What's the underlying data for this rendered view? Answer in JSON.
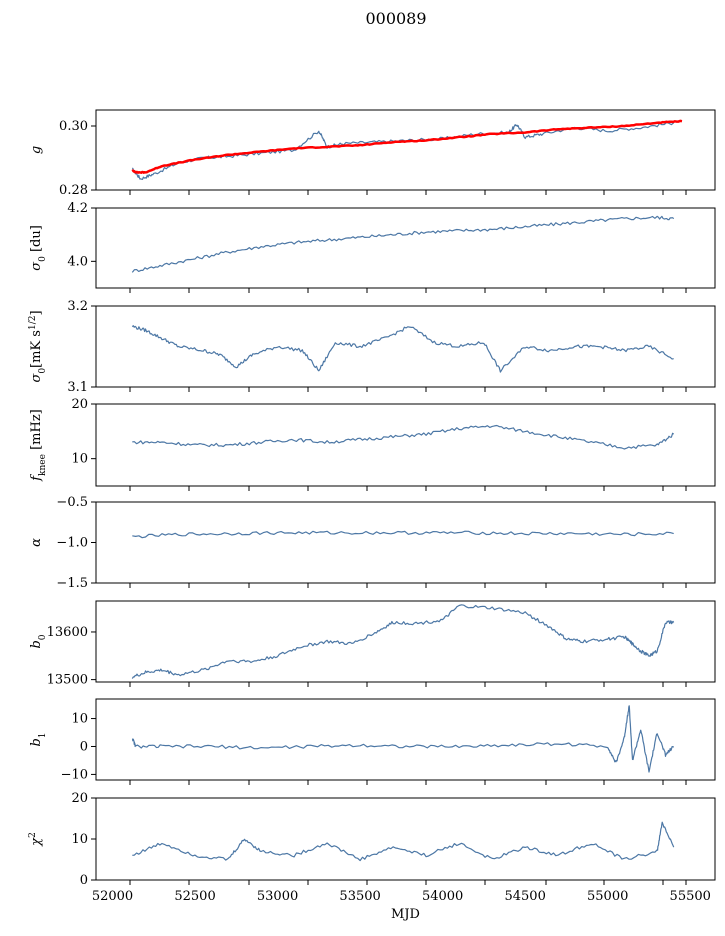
{
  "figure": {
    "title": "000089"
  },
  "colors": {
    "primary": "#4c77a5",
    "overlay": "#ff0000"
  },
  "chart_data": [
    {
      "type": "line",
      "ylabel": "g",
      "ylabel_sub": "",
      "xlim": [
        51900,
        55650
      ],
      "ylim": [
        0.28,
        0.305
      ],
      "yticks": [
        0.28,
        0.3
      ],
      "ytick_labels": [
        "0.28",
        "0.30"
      ],
      "series": [
        {
          "color": "#4c77a5",
          "x": [
            52120,
            52170,
            52250,
            52400,
            52550,
            52700,
            52900,
            53100,
            53250,
            53300,
            53400,
            53600,
            53800,
            54000,
            54200,
            54400,
            54450,
            54500,
            54600,
            54800,
            55000,
            55200,
            55400
          ],
          "y": [
            0.2865,
            0.2835,
            0.285,
            0.2885,
            0.29,
            0.2905,
            0.2915,
            0.2925,
            0.2985,
            0.2935,
            0.2945,
            0.295,
            0.2955,
            0.296,
            0.2975,
            0.298,
            0.3005,
            0.2965,
            0.2975,
            0.2995,
            0.2985,
            0.2995,
            0.301
          ]
        },
        {
          "color": "#ff0000",
          "x": [
            52120,
            52150,
            52200,
            52300,
            52500,
            52700,
            52900,
            53100,
            53300,
            53500,
            53700,
            53900,
            54100,
            54300,
            54500,
            54700,
            54900,
            55100,
            55300,
            55450
          ],
          "y": [
            0.286,
            0.2855,
            0.2855,
            0.2875,
            0.2895,
            0.291,
            0.292,
            0.293,
            0.2935,
            0.294,
            0.295,
            0.2955,
            0.2965,
            0.2975,
            0.298,
            0.299,
            0.2995,
            0.3,
            0.301,
            0.3015
          ]
        }
      ]
    },
    {
      "type": "line",
      "ylabel": "σ",
      "ylabel_sub": "0",
      "ylabel_unit": " [du]",
      "xlim": [
        51900,
        55650
      ],
      "ylim": [
        3.9,
        4.2
      ],
      "yticks": [
        4.0,
        4.2
      ],
      "ytick_labels": [
        "4.0",
        "4.2"
      ],
      "series": [
        {
          "color": "#4c77a5",
          "x": [
            52120,
            52300,
            52500,
            52700,
            52900,
            53100,
            53300,
            53500,
            53700,
            53900,
            54100,
            54300,
            54500,
            54700,
            54900,
            55100,
            55300,
            55400
          ],
          "y": [
            3.963,
            3.985,
            4.01,
            4.035,
            4.055,
            4.07,
            4.08,
            4.09,
            4.1,
            4.11,
            4.115,
            4.12,
            4.13,
            4.14,
            4.15,
            4.16,
            4.165,
            4.16
          ]
        }
      ]
    },
    {
      "type": "line",
      "ylabel": "σ",
      "ylabel_sub": "0",
      "ylabel_unit": "[mK s",
      "xlim": [
        51900,
        55650
      ],
      "ylim": [
        3.1,
        3.2
      ],
      "yticks": [
        3.1,
        3.2
      ],
      "ytick_labels": [
        "3.1",
        "3.2"
      ],
      "series": [
        {
          "color": "#4c77a5",
          "x": [
            52120,
            52200,
            52300,
            52400,
            52550,
            52650,
            52750,
            52850,
            53000,
            53150,
            53250,
            53350,
            53500,
            53650,
            53800,
            53950,
            54100,
            54250,
            54350,
            54500,
            54650,
            54800,
            54950,
            55100,
            55250,
            55400
          ],
          "y": [
            3.175,
            3.17,
            3.16,
            3.15,
            3.145,
            3.14,
            3.125,
            3.14,
            3.15,
            3.145,
            3.12,
            3.155,
            3.15,
            3.16,
            3.175,
            3.155,
            3.15,
            3.155,
            3.12,
            3.15,
            3.145,
            3.15,
            3.15,
            3.145,
            3.15,
            3.135
          ]
        }
      ]
    },
    {
      "type": "line",
      "ylabel": "f",
      "ylabel_sub": "knee",
      "ylabel_unit": " [mHz]",
      "xlim": [
        51900,
        55650
      ],
      "ylim": [
        5,
        20
      ],
      "yticks": [
        10,
        20
      ],
      "ytick_labels": [
        "10",
        "20"
      ],
      "series": [
        {
          "color": "#4c77a5",
          "x": [
            52120,
            52300,
            52500,
            52700,
            52900,
            53100,
            53300,
            53500,
            53700,
            53900,
            54100,
            54300,
            54500,
            54700,
            54900,
            55100,
            55300,
            55400
          ],
          "y": [
            13,
            13,
            12.5,
            12.5,
            13,
            13.5,
            13,
            13.5,
            14,
            14.5,
            15.5,
            16,
            15,
            14,
            13,
            12,
            12.5,
            14.5
          ]
        }
      ]
    },
    {
      "type": "line",
      "ylabel": "α",
      "ylabel_sub": "",
      "ylabel_unit": "",
      "xlim": [
        51900,
        55650
      ],
      "ylim": [
        -1.5,
        -0.5
      ],
      "yticks": [
        -1.5,
        -1.0,
        -0.5
      ],
      "ytick_labels": [
        "−1.5",
        "−1.0",
        "−0.5"
      ],
      "series": [
        {
          "color": "#4c77a5",
          "x": [
            52120,
            52400,
            52700,
            53000,
            53300,
            53600,
            53900,
            54200,
            54500,
            54800,
            55100,
            55400
          ],
          "y": [
            -0.93,
            -0.9,
            -0.89,
            -0.88,
            -0.88,
            -0.88,
            -0.88,
            -0.88,
            -0.89,
            -0.89,
            -0.9,
            -0.89
          ]
        }
      ]
    },
    {
      "type": "line",
      "ylabel": "b",
      "ylabel_sub": "0",
      "ylabel_unit": "",
      "xlim": [
        51900,
        55650
      ],
      "ylim": [
        13495,
        13665
      ],
      "yticks": [
        13500,
        13600
      ],
      "ytick_labels": [
        "13500",
        "13600"
      ],
      "series": [
        {
          "color": "#4c77a5",
          "x": [
            52120,
            52200,
            52300,
            52400,
            52550,
            52700,
            52850,
            53000,
            53150,
            53300,
            53450,
            53600,
            53700,
            53850,
            54000,
            54100,
            54300,
            54500,
            54650,
            54750,
            54850,
            55000,
            55100,
            55150,
            55200,
            55250,
            55300,
            55350,
            55400
          ],
          "y": [
            13505,
            13515,
            13520,
            13510,
            13520,
            13540,
            13538,
            13550,
            13570,
            13580,
            13575,
            13600,
            13620,
            13618,
            13625,
            13655,
            13650,
            13640,
            13610,
            13585,
            13580,
            13585,
            13590,
            13575,
            13560,
            13550,
            13560,
            13620,
            13620
          ]
        }
      ]
    },
    {
      "type": "line",
      "ylabel": "b",
      "ylabel_sub": "1",
      "ylabel_unit": "",
      "xlim": [
        51900,
        55650
      ],
      "ylim": [
        -12,
        17
      ],
      "yticks": [
        -10,
        0,
        10
      ],
      "ytick_labels": [
        "−10",
        "0",
        "10"
      ],
      "series": [
        {
          "color": "#4c77a5",
          "x": [
            52120,
            52140,
            52300,
            52600,
            52900,
            53200,
            53500,
            53800,
            54100,
            54400,
            54700,
            55000,
            55050,
            55100,
            55130,
            55150,
            55200,
            55250,
            55300,
            55350,
            55400
          ],
          "y": [
            3,
            0,
            0,
            0,
            -0.5,
            0,
            0.5,
            0,
            0,
            0.5,
            1,
            0,
            -6,
            3,
            15,
            -5,
            6,
            -9,
            5,
            -3,
            0
          ]
        }
      ]
    },
    {
      "type": "line",
      "ylabel": "χ",
      "ylabel_sub": "",
      "ylabel_sup": "2",
      "ylabel_unit": "",
      "xlabel": "MJD",
      "xlim": [
        51900,
        55650
      ],
      "ylim": [
        0,
        20
      ],
      "yticks": [
        0,
        10,
        20
      ],
      "ytick_labels": [
        "0",
        "10",
        "20"
      ],
      "xticks": [
        52000,
        52500,
        53000,
        53500,
        54000,
        54500,
        55000,
        55500
      ],
      "xtick_labels": [
        "52000",
        "52500",
        "53000",
        "53500",
        "54000",
        "54500",
        "55000",
        "55500"
      ],
      "series": [
        {
          "color": "#4c77a5",
          "x": [
            52120,
            52300,
            52500,
            52700,
            52800,
            52900,
            53100,
            53300,
            53500,
            53700,
            53900,
            54100,
            54300,
            54500,
            54700,
            54900,
            55100,
            55300,
            55330,
            55400
          ],
          "y": [
            6,
            9,
            6,
            5,
            10,
            7,
            6,
            9,
            5,
            8,
            6,
            9,
            5,
            8,
            6,
            9,
            5,
            7,
            14,
            8
          ]
        }
      ]
    }
  ]
}
